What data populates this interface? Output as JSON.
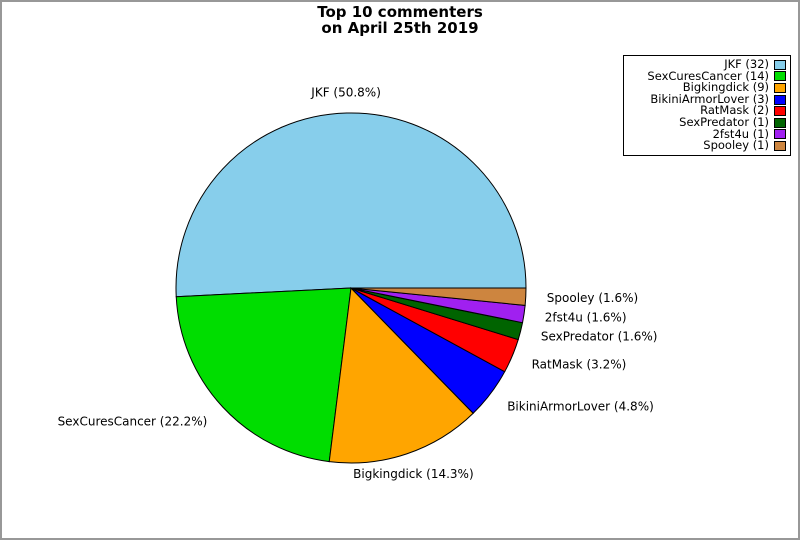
{
  "frame": {
    "background_color": "#ffffff",
    "border_color": "#989898"
  },
  "title": {
    "line1": "Top 10 commenters",
    "line2": "on April 25th 2019"
  },
  "chart_data": {
    "type": "pie",
    "title": "Top 10 commenters on April 25th 2019",
    "total_count": 63,
    "start_angle_deg": 0,
    "direction": "counterclockwise",
    "edge_color": "#000000",
    "legend_position": "upper right",
    "legend_marker_side": "right",
    "slices": [
      {
        "label": "JKF",
        "count": 32,
        "percent": 50.8,
        "slice_label": "JKF (50.8%)",
        "legend_label": "JKF (32)",
        "color": "#87CEEB"
      },
      {
        "label": "SexCuresCancer",
        "count": 14,
        "percent": 22.2,
        "slice_label": "SexCuresCancer (22.2%)",
        "legend_label": "SexCuresCancer (14)",
        "color": "#00DD00"
      },
      {
        "label": "Bigkingdick",
        "count": 9,
        "percent": 14.3,
        "slice_label": "Bigkingdick (14.3%)",
        "legend_label": "Bigkingdick (9)",
        "color": "#FFA500"
      },
      {
        "label": "BikiniArmorLover",
        "count": 3,
        "percent": 4.8,
        "slice_label": "BikiniArmorLover (4.8%)",
        "legend_label": "BikiniArmorLover (3)",
        "color": "#0000FF"
      },
      {
        "label": "RatMask",
        "count": 2,
        "percent": 3.2,
        "slice_label": "RatMask (3.2%)",
        "legend_label": "RatMask (2)",
        "color": "#FF0000"
      },
      {
        "label": "SexPredator",
        "count": 1,
        "percent": 1.6,
        "slice_label": "SexPredator (1.6%)",
        "legend_label": "SexPredator (1)",
        "color": "#006400"
      },
      {
        "label": "2fst4u",
        "count": 1,
        "percent": 1.6,
        "slice_label": "2fst4u (1.6%)",
        "legend_label": "2fst4u (1)",
        "color": "#A020F0"
      },
      {
        "label": "Spooley",
        "count": 1,
        "percent": 1.6,
        "slice_label": "Spooley (1.6%)",
        "legend_label": "Spooley (1)",
        "color": "#CD853F"
      }
    ]
  }
}
